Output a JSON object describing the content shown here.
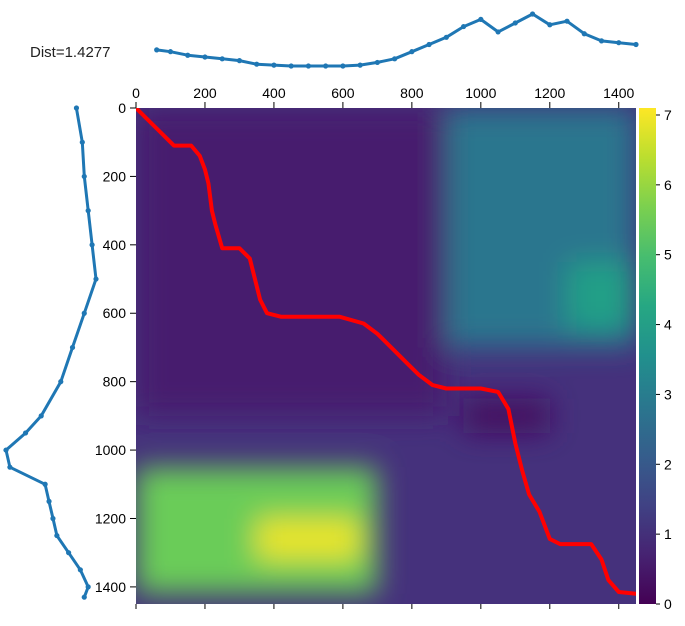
{
  "dist_label": "Dist=1.4277",
  "colors": {
    "series": "#1f77b4",
    "path": "#ff0000",
    "colormap": "viridis"
  },
  "chart_data": [
    {
      "type": "heatmap",
      "title": "",
      "xlim": [
        0,
        1450
      ],
      "ylim": [
        1450,
        0
      ],
      "x_ticks": [
        0,
        200,
        400,
        600,
        800,
        1000,
        1200,
        1400
      ],
      "y_ticks": [
        0,
        200,
        400,
        600,
        800,
        1000,
        1200,
        1400
      ],
      "colorbar": {
        "range": [
          0,
          7.1
        ],
        "ticks": [
          0,
          1,
          2,
          3,
          4,
          5,
          6,
          7
        ],
        "colormap": "viridis"
      },
      "value_regions": [
        {
          "x": [
            0,
            900
          ],
          "y": [
            0,
            900
          ],
          "value": 0.6
        },
        {
          "x": [
            900,
            1450
          ],
          "y": [
            0,
            700
          ],
          "value": 2.8
        },
        {
          "x": [
            1250,
            1450
          ],
          "y": [
            450,
            650
          ],
          "value": 4.0
        },
        {
          "x": [
            0,
            700
          ],
          "y": [
            1050,
            1420
          ],
          "value": 5.5
        },
        {
          "x": [
            350,
            650
          ],
          "y": [
            1200,
            1320
          ],
          "value": 6.9
        },
        {
          "x": [
            950,
            1200
          ],
          "y": [
            850,
            950
          ],
          "value": 0.3
        }
      ],
      "path": {
        "name": "warping path",
        "points": [
          [
            0,
            0
          ],
          [
            60,
            60
          ],
          [
            110,
            110
          ],
          [
            160,
            110
          ],
          [
            185,
            140
          ],
          [
            200,
            180
          ],
          [
            210,
            220
          ],
          [
            220,
            300
          ],
          [
            230,
            340
          ],
          [
            250,
            410
          ],
          [
            300,
            410
          ],
          [
            330,
            440
          ],
          [
            360,
            560
          ],
          [
            380,
            600
          ],
          [
            420,
            610
          ],
          [
            500,
            610
          ],
          [
            590,
            610
          ],
          [
            660,
            630
          ],
          [
            700,
            660
          ],
          [
            740,
            700
          ],
          [
            790,
            750
          ],
          [
            820,
            780
          ],
          [
            860,
            810
          ],
          [
            900,
            820
          ],
          [
            1000,
            820
          ],
          [
            1050,
            830
          ],
          [
            1080,
            880
          ],
          [
            1100,
            980
          ],
          [
            1120,
            1060
          ],
          [
            1140,
            1130
          ],
          [
            1170,
            1180
          ],
          [
            1200,
            1260
          ],
          [
            1230,
            1275
          ],
          [
            1320,
            1275
          ],
          [
            1350,
            1320
          ],
          [
            1370,
            1380
          ],
          [
            1400,
            1415
          ],
          [
            1450,
            1420
          ]
        ]
      }
    },
    {
      "type": "line",
      "title": "",
      "role": "top series (aligned to x axis)",
      "x": [
        60,
        100,
        150,
        200,
        250,
        300,
        350,
        400,
        450,
        500,
        550,
        600,
        650,
        700,
        750,
        800,
        850,
        900,
        950,
        1000,
        1050,
        1100,
        1150,
        1200,
        1250,
        1300,
        1350,
        1400,
        1450
      ],
      "values": [
        0.9,
        0.8,
        0.6,
        0.5,
        0.4,
        0.3,
        0.1,
        0.05,
        0.0,
        0.0,
        0.0,
        0.0,
        0.05,
        0.2,
        0.4,
        0.8,
        1.2,
        1.6,
        2.2,
        2.6,
        1.9,
        2.4,
        2.9,
        2.3,
        2.5,
        1.8,
        1.4,
        1.3,
        1.2
      ]
    },
    {
      "type": "line",
      "title": "",
      "role": "left series (aligned to y axis)",
      "y": [
        0,
        100,
        200,
        300,
        400,
        500,
        600,
        700,
        800,
        900,
        950,
        1000,
        1050,
        1100,
        1150,
        1200,
        1250,
        1300,
        1350,
        1400,
        1430
      ],
      "values": [
        0.4,
        0.55,
        0.6,
        0.7,
        0.8,
        0.9,
        0.6,
        0.3,
        0.0,
        -0.5,
        -0.9,
        -1.4,
        -1.3,
        -0.4,
        -0.3,
        -0.2,
        -0.1,
        0.2,
        0.5,
        0.7,
        0.6
      ]
    }
  ]
}
